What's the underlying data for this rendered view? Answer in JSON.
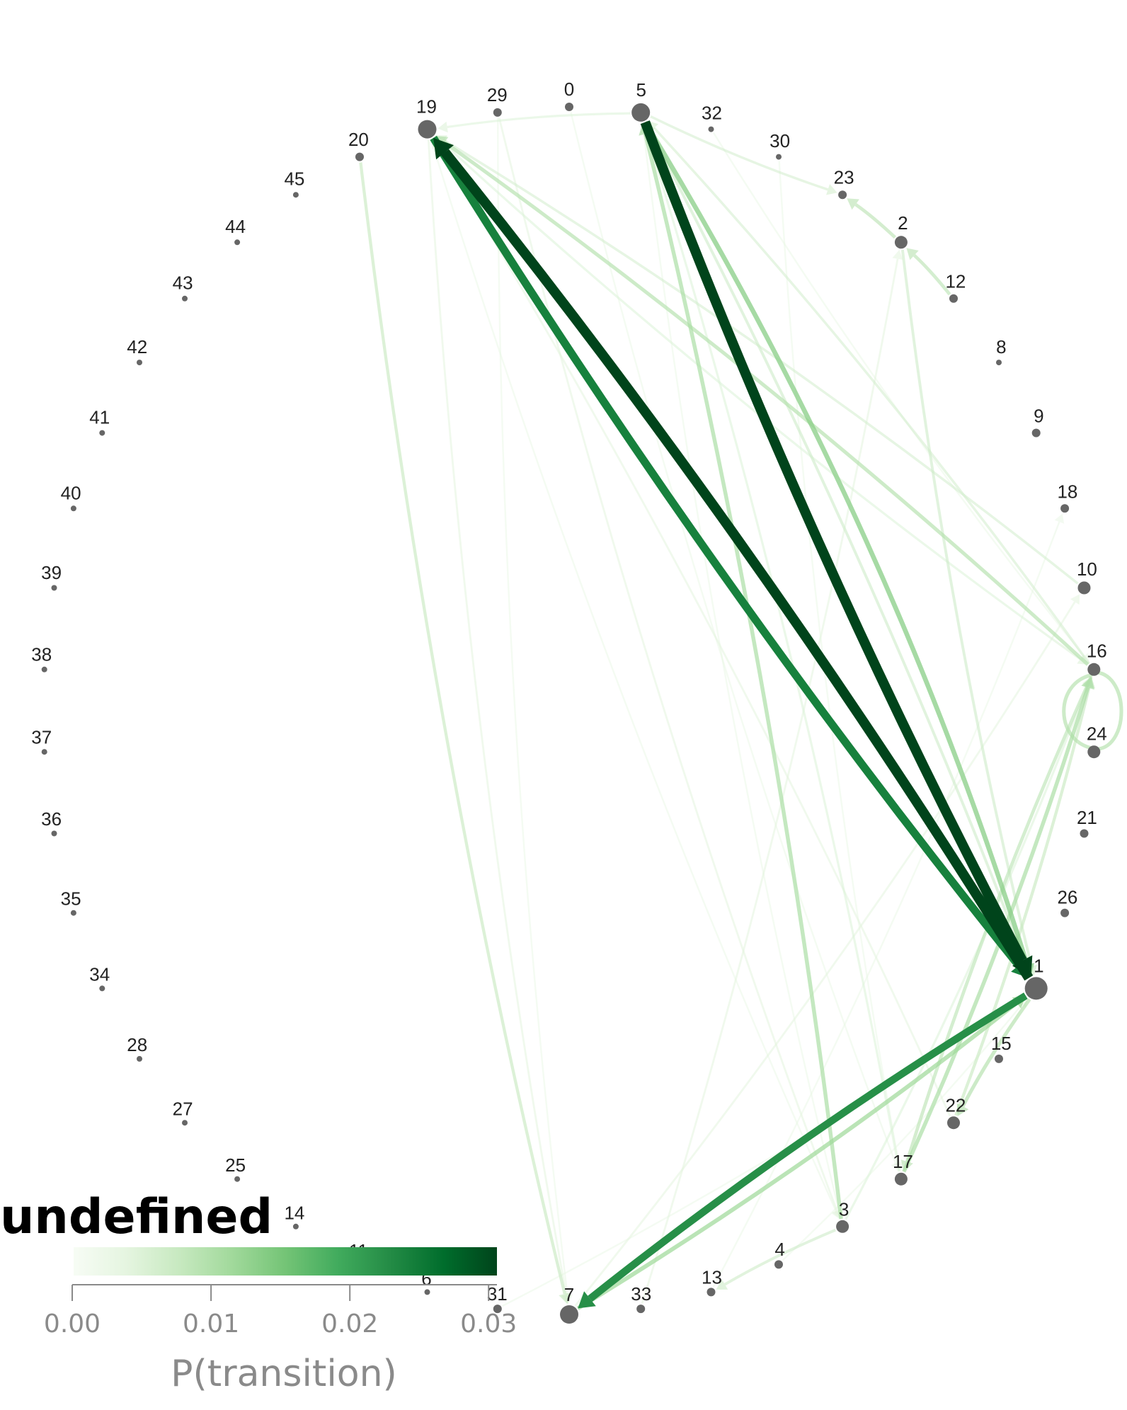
{
  "legend": {
    "title": "undefined",
    "axis_label": "P(transition)",
    "ticks": [
      "0.00",
      "0.01",
      "0.02",
      "0.03"
    ],
    "gradient": [
      "#f7fcf5",
      "#e5f5e0",
      "#c7e9c0",
      "#a1d99b",
      "#74c476",
      "#41ab5d",
      "#238b45",
      "#006d2c",
      "#00441b"
    ]
  },
  "graph": {
    "nodes": [
      {
        "id": "0",
        "size": "small"
      },
      {
        "id": "5",
        "size": "large"
      },
      {
        "id": "32",
        "size": "tiny"
      },
      {
        "id": "30",
        "size": "tiny"
      },
      {
        "id": "23",
        "size": "small"
      },
      {
        "id": "2",
        "size": "medium"
      },
      {
        "id": "12",
        "size": "small"
      },
      {
        "id": "8",
        "size": "tiny"
      },
      {
        "id": "9",
        "size": "small"
      },
      {
        "id": "18",
        "size": "small"
      },
      {
        "id": "10",
        "size": "medium"
      },
      {
        "id": "16",
        "size": "medium"
      },
      {
        "id": "24",
        "size": "medium"
      },
      {
        "id": "21",
        "size": "small"
      },
      {
        "id": "26",
        "size": "small"
      },
      {
        "id": "1",
        "size": "xlarge"
      },
      {
        "id": "15",
        "size": "small"
      },
      {
        "id": "22",
        "size": "medium"
      },
      {
        "id": "17",
        "size": "medium"
      },
      {
        "id": "3",
        "size": "medium"
      },
      {
        "id": "4",
        "size": "small"
      },
      {
        "id": "13",
        "size": "small"
      },
      {
        "id": "33",
        "size": "small"
      },
      {
        "id": "7",
        "size": "large"
      },
      {
        "id": "31",
        "size": "small"
      },
      {
        "id": "6",
        "size": "tiny"
      },
      {
        "id": "11",
        "size": "tiny"
      },
      {
        "id": "14",
        "size": "tiny"
      },
      {
        "id": "25",
        "size": "tiny"
      },
      {
        "id": "27",
        "size": "tiny"
      },
      {
        "id": "28",
        "size": "tiny"
      },
      {
        "id": "34",
        "size": "tiny"
      },
      {
        "id": "35",
        "size": "tiny"
      },
      {
        "id": "36",
        "size": "tiny"
      },
      {
        "id": "37",
        "size": "tiny"
      },
      {
        "id": "38",
        "size": "tiny"
      },
      {
        "id": "39",
        "size": "tiny"
      },
      {
        "id": "40",
        "size": "tiny"
      },
      {
        "id": "41",
        "size": "tiny"
      },
      {
        "id": "42",
        "size": "tiny"
      },
      {
        "id": "43",
        "size": "tiny"
      },
      {
        "id": "44",
        "size": "tiny"
      },
      {
        "id": "45",
        "size": "tiny"
      },
      {
        "id": "20",
        "size": "small"
      },
      {
        "id": "19",
        "size": "large"
      },
      {
        "id": "29",
        "size": "small"
      }
    ],
    "edges": [
      {
        "from": "5",
        "to": "1",
        "p": 0.031
      },
      {
        "from": "1",
        "to": "19",
        "p": 0.031
      },
      {
        "from": "19",
        "to": "1",
        "p": 0.024
      },
      {
        "from": "1",
        "to": "7",
        "p": 0.022
      },
      {
        "from": "5",
        "to": "1",
        "p": 0.012,
        "bend": -0.06
      },
      {
        "from": "7",
        "to": "1",
        "p": 0.01
      },
      {
        "from": "3",
        "to": "5",
        "p": 0.009
      },
      {
        "from": "17",
        "to": "16",
        "p": 0.009
      },
      {
        "from": "16",
        "to": "24",
        "p": 0.008,
        "loop": true
      },
      {
        "from": "1",
        "to": "22",
        "p": 0.008
      },
      {
        "from": "16",
        "to": "19",
        "p": 0.008
      },
      {
        "from": "12",
        "to": "2",
        "p": 0.007
      },
      {
        "from": "2",
        "to": "23",
        "p": 0.007
      },
      {
        "from": "16",
        "to": "17",
        "p": 0.007
      },
      {
        "from": "22",
        "to": "16",
        "p": 0.006
      },
      {
        "from": "20",
        "to": "7",
        "p": 0.006
      },
      {
        "from": "2",
        "to": "1",
        "p": 0.005
      },
      {
        "from": "1",
        "to": "5",
        "p": 0.005
      },
      {
        "from": "3",
        "to": "13",
        "p": 0.005
      },
      {
        "from": "10",
        "to": "19",
        "p": 0.004
      },
      {
        "from": "16",
        "to": "5",
        "p": 0.004
      },
      {
        "from": "5",
        "to": "23",
        "p": 0.004
      },
      {
        "from": "5",
        "to": "19",
        "p": 0.003
      },
      {
        "from": "19",
        "to": "16",
        "p": 0.003
      },
      {
        "from": "3",
        "to": "16",
        "p": 0.003
      },
      {
        "from": "17",
        "to": "5",
        "p": 0.003
      },
      {
        "from": "22",
        "to": "19",
        "p": 0.002
      },
      {
        "from": "29",
        "to": "3",
        "p": 0.002
      },
      {
        "from": "19",
        "to": "7",
        "p": 0.002
      },
      {
        "from": "7",
        "to": "10",
        "p": 0.002
      },
      {
        "from": "33",
        "to": "2",
        "p": 0.002
      },
      {
        "from": "13",
        "to": "18",
        "p": 0.001
      },
      {
        "from": "29",
        "to": "7",
        "p": 0.001
      },
      {
        "from": "0",
        "to": "17",
        "p": 0.001
      },
      {
        "from": "5",
        "to": "3",
        "p": 0.001
      },
      {
        "from": "4",
        "to": "1",
        "p": 0.001
      },
      {
        "from": "31",
        "to": "1",
        "p": 0.001
      },
      {
        "from": "19",
        "to": "3",
        "p": 0.001
      },
      {
        "from": "30",
        "to": "17",
        "p": 0.001
      },
      {
        "from": "32",
        "to": "16",
        "p": 0.001
      }
    ]
  }
}
